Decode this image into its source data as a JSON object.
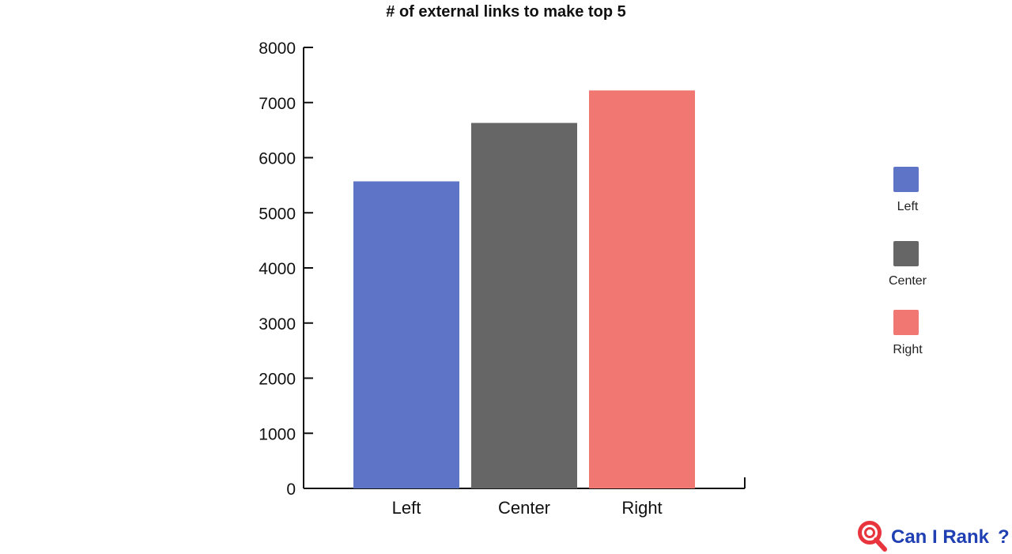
{
  "chart_data": {
    "type": "bar",
    "title": "# of external links to make top 5",
    "categories": [
      "Left",
      "Center",
      "Right"
    ],
    "values": [
      5570,
      6630,
      7220
    ],
    "ylim": [
      0,
      8000
    ],
    "yticks": [
      0,
      1000,
      2000,
      3000,
      4000,
      5000,
      6000,
      7000,
      8000
    ],
    "colors": [
      "#5e74c6",
      "#666666",
      "#f17772"
    ],
    "legend": {
      "placement": "right",
      "entries": [
        "Left",
        "Center",
        "Right"
      ]
    },
    "grid": false
  },
  "brand": {
    "text": "Can I Rank",
    "question_mark": "?",
    "icon": "search-magnifier-logo-icon"
  }
}
